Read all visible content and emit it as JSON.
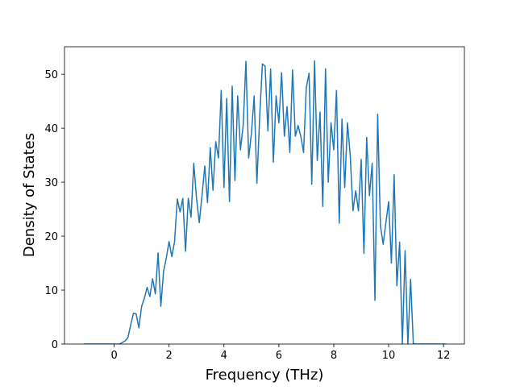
{
  "chart_data": {
    "type": "line",
    "x_label": "Frequency (THz)",
    "y_label": "Density of States",
    "xlim": [
      -1.81,
      12.76
    ],
    "ylim": [
      0,
      55.1
    ],
    "xticks": [
      0,
      2,
      4,
      6,
      8,
      10,
      12
    ],
    "yticks": [
      0,
      10,
      20,
      30,
      40,
      50
    ],
    "series": [
      {
        "color": "#1f77b4",
        "x": [
          -1.1,
          -1.0,
          -0.9,
          -0.8,
          -0.7,
          -0.6,
          -0.5,
          -0.4,
          -0.3,
          -0.2,
          -0.1,
          0.0,
          0.1,
          0.2,
          0.3,
          0.4,
          0.5,
          0.6,
          0.7,
          0.8,
          0.9,
          1.0,
          1.1,
          1.2,
          1.3,
          1.4,
          1.5,
          1.6,
          1.7,
          1.8,
          1.9,
          2.0,
          2.1,
          2.2,
          2.3,
          2.4,
          2.5,
          2.6,
          2.7,
          2.8,
          2.9,
          3.0,
          3.1,
          3.2,
          3.3,
          3.4,
          3.5,
          3.6,
          3.7,
          3.8,
          3.9,
          4.0,
          4.1,
          4.2,
          4.3,
          4.4,
          4.5,
          4.6,
          4.7,
          4.8,
          4.9,
          5.0,
          5.1,
          5.2,
          5.3,
          5.4,
          5.5,
          5.6,
          5.7,
          5.8,
          5.9,
          6.0,
          6.1,
          6.2,
          6.3,
          6.4,
          6.5,
          6.6,
          6.7,
          6.8,
          6.9,
          7.0,
          7.1,
          7.2,
          7.3,
          7.4,
          7.5,
          7.6,
          7.7,
          7.8,
          7.9,
          8.0,
          8.1,
          8.2,
          8.3,
          8.4,
          8.5,
          8.6,
          8.7,
          8.8,
          8.9,
          9.0,
          9.1,
          9.2,
          9.3,
          9.4,
          9.5,
          9.6,
          9.7,
          9.8,
          9.9,
          10.0,
          10.1,
          10.2,
          10.3,
          10.4,
          10.5,
          10.6,
          10.7,
          10.8,
          10.9,
          11.0,
          11.1,
          11.2,
          11.3,
          11.4,
          11.5,
          11.6,
          11.7,
          11.8,
          11.9,
          12.0,
          12.1
        ],
        "values": [
          0,
          0,
          0,
          0,
          0,
          0,
          0,
          0,
          0,
          0,
          0,
          0,
          0,
          0,
          0.3,
          0.6,
          1.2,
          3.5,
          5.7,
          5.6,
          3.0,
          7.0,
          8.5,
          10.5,
          8.8,
          12.1,
          9.3,
          16.9,
          7.0,
          13.5,
          16.0,
          19.0,
          16.2,
          19.0,
          26.9,
          24.5,
          27.0,
          17.2,
          27.0,
          23.5,
          33.5,
          27.0,
          22.5,
          27.5,
          33.0,
          26.2,
          36.4,
          28.5,
          37.5,
          34.5,
          47.0,
          29.0,
          45.5,
          26.4,
          47.8,
          30.3,
          46.0,
          36.0,
          40.5,
          52.4,
          34.5,
          39.0,
          46.0,
          29.8,
          42.0,
          51.9,
          51.5,
          39.5,
          51.0,
          33.7,
          46.0,
          41.0,
          50.3,
          38.5,
          44.0,
          35.5,
          50.8,
          38.5,
          40.5,
          38.5,
          35.5,
          47.5,
          50.2,
          29.6,
          52.5,
          34.0,
          43.0,
          25.5,
          51.0,
          30.0,
          41.0,
          36.0,
          47.0,
          22.4,
          41.7,
          29.0,
          41.0,
          35.0,
          24.7,
          28.4,
          24.7,
          34.2,
          16.8,
          38.3,
          27.5,
          33.5,
          8.1,
          42.6,
          22.0,
          18.5,
          22.5,
          26.4,
          15.0,
          31.4,
          10.8,
          18.9,
          0,
          17.3,
          0,
          12.0,
          0,
          0,
          0,
          0,
          0,
          0,
          0,
          0,
          0,
          0,
          0,
          0,
          0
        ]
      }
    ]
  }
}
